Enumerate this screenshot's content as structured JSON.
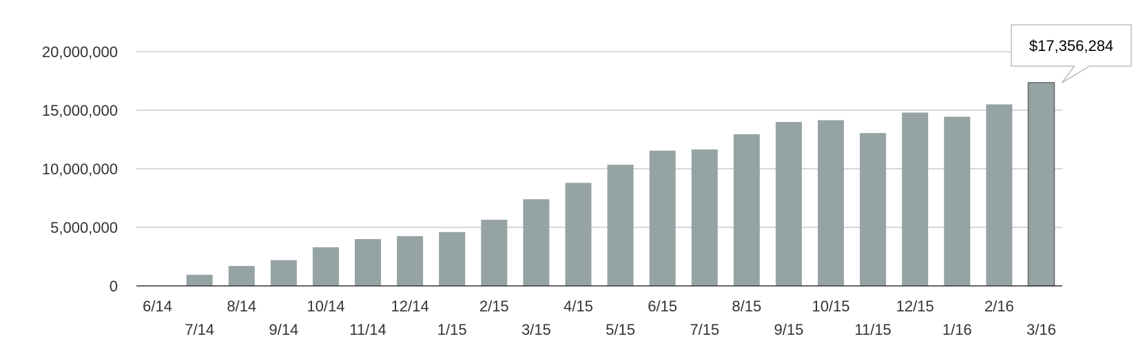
{
  "chart_data": {
    "type": "bar",
    "categories": [
      "6/14",
      "7/14",
      "8/14",
      "9/14",
      "10/14",
      "11/14",
      "12/14",
      "1/15",
      "2/15",
      "3/15",
      "4/15",
      "5/15",
      "6/15",
      "7/15",
      "8/15",
      "9/15",
      "10/15",
      "11/15",
      "12/15",
      "1/16",
      "2/16",
      "3/16"
    ],
    "values": [
      0,
      950000,
      1700000,
      2200000,
      3300000,
      4000000,
      4250000,
      4600000,
      5650000,
      7400000,
      8800000,
      10350000,
      11550000,
      11650000,
      12950000,
      14000000,
      14150000,
      13050000,
      14800000,
      14450000,
      15500000,
      17356284
    ],
    "y_ticks": [
      "0",
      "5,000,000",
      "10,000,000",
      "15,000,000",
      "20,000,000"
    ],
    "ylim": [
      0,
      20000000
    ],
    "grid": true,
    "title": "",
    "xlabel": "",
    "ylabel": "",
    "bar_color": "#95a3a4",
    "highlight_index": 21,
    "tooltip": "$17,356,284"
  }
}
